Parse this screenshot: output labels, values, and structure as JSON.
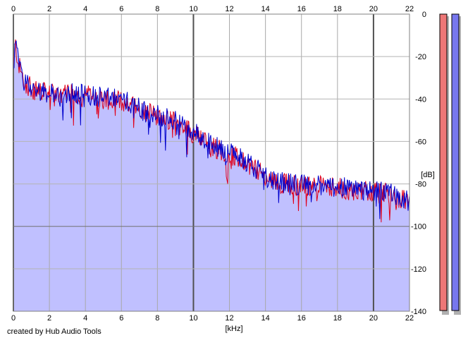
{
  "chart_data": {
    "type": "area",
    "title": "",
    "xlabel": "[kHz]",
    "ylabel": "[dB]",
    "xlim": [
      0,
      22
    ],
    "ylim": [
      -140,
      0
    ],
    "x_ticks": [
      "0",
      "2",
      "4",
      "6",
      "8",
      "10",
      "12",
      "14",
      "16",
      "18",
      "20",
      "22"
    ],
    "y_ticks": [
      "0",
      "-20",
      "-40",
      "-60",
      "-80",
      "-100",
      "-120",
      "-140"
    ],
    "grid": true,
    "series": [
      {
        "color": "#e0001a"
      },
      {
        "color": "#0000cc"
      }
    ],
    "envelope": {
      "x": [
        0,
        0.1,
        0.3,
        0.6,
        1.0,
        2.0,
        3.0,
        4.0,
        5.0,
        6.0,
        7.0,
        8.0,
        9.0,
        10.0,
        11.0,
        12.0,
        13.0,
        14.0,
        15.0,
        16.0,
        17.0,
        18.0,
        19.0,
        20.0,
        21.0,
        22.0
      ],
      "y": [
        -28,
        -14,
        -24,
        -32,
        -35,
        -38,
        -38,
        -38,
        -40,
        -41,
        -44,
        -48,
        -51,
        -56,
        -62,
        -66,
        -70,
        -77,
        -80,
        -81,
        -81,
        -82,
        -83,
        -84,
        -85,
        -89
      ]
    },
    "area_fill": "#c0c0ff",
    "level_meters": [
      {
        "color": "#ee7777"
      },
      {
        "color": "#7777ee"
      }
    ]
  },
  "credit": "created by Hub Audio Tools"
}
